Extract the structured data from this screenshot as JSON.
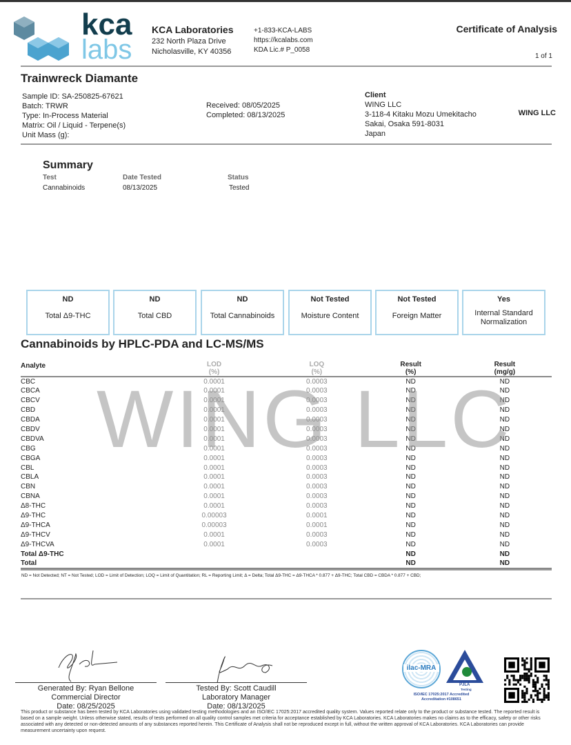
{
  "logo": {
    "top": "kca",
    "bottom": "labs"
  },
  "lab": {
    "name": "KCA Laboratories",
    "addr1": "232 North Plaza Drive",
    "addr2": "Nicholasville, KY 40356",
    "phone": "+1-833-KCA-LABS",
    "web": "https://kcalabs.com",
    "license": "KDA Lic.# P_0058"
  },
  "doc": {
    "title": "Certificate of Analysis",
    "page": "1 of 1"
  },
  "sample": {
    "name": "Trainwreck Diamante",
    "id": "Sample ID: SA-250825-67621",
    "batch": "Batch: TRWR",
    "type": "Type: In-Process Material",
    "matrix": "Matrix: Oil / Liquid - Terpene(s)",
    "unit_mass": "Unit Mass (g):",
    "received": "Received: 08/05/2025",
    "completed": "Completed: 08/13/2025"
  },
  "client": {
    "label": "Client",
    "name": "WING LLC",
    "addr1": "3-118-4 Kitaku Mozu Umekitacho",
    "addr2": "Sakai, Osaka 591-8031",
    "country": "Japan",
    "badge": "WING LLC"
  },
  "summary": {
    "title": "Summary",
    "headers": [
      "Test",
      "Date Tested",
      "Status"
    ],
    "row": [
      "Cannabinoids",
      "08/13/2025",
      "Tested"
    ]
  },
  "boxes": [
    {
      "value": "ND",
      "label": "Total Δ9-THC"
    },
    {
      "value": "ND",
      "label": "Total CBD"
    },
    {
      "value": "ND",
      "label": "Total Cannabinoids"
    },
    {
      "value": "Not Tested",
      "label": "Moisture Content"
    },
    {
      "value": "Not Tested",
      "label": "Foreign Matter"
    },
    {
      "value": "Yes",
      "label": "Internal Standard Normalization"
    }
  ],
  "cannabinoids": {
    "title": "Cannabinoids by HPLC-PDA and LC-MS/MS",
    "headers": {
      "analyte": "Analyte",
      "lod": "LOD",
      "lod_unit": "(%)",
      "loq": "LOQ",
      "loq_unit": "(%)",
      "result_pct": "Result",
      "result_pct_unit": "(%)",
      "result_mg": "Result",
      "result_mg_unit": "(mg/g)"
    },
    "rows": [
      [
        "CBC",
        "0.0001",
        "0.0003",
        "ND",
        "ND"
      ],
      [
        "CBCA",
        "0.0001",
        "0.0003",
        "ND",
        "ND"
      ],
      [
        "CBCV",
        "0.0001",
        "0.0003",
        "ND",
        "ND"
      ],
      [
        "CBD",
        "0.0001",
        "0.0003",
        "ND",
        "ND"
      ],
      [
        "CBDA",
        "0.0001",
        "0.0003",
        "ND",
        "ND"
      ],
      [
        "CBDV",
        "0.0001",
        "0.0003",
        "ND",
        "ND"
      ],
      [
        "CBDVA",
        "0.0001",
        "0.0003",
        "ND",
        "ND"
      ],
      [
        "CBG",
        "0.0001",
        "0.0003",
        "ND",
        "ND"
      ],
      [
        "CBGA",
        "0.0001",
        "0.0003",
        "ND",
        "ND"
      ],
      [
        "CBL",
        "0.0001",
        "0.0003",
        "ND",
        "ND"
      ],
      [
        "CBLA",
        "0.0001",
        "0.0003",
        "ND",
        "ND"
      ],
      [
        "CBN",
        "0.0001",
        "0.0003",
        "ND",
        "ND"
      ],
      [
        "CBNA",
        "0.0001",
        "0.0003",
        "ND",
        "ND"
      ],
      [
        "Δ8-THC",
        "0.0001",
        "0.0003",
        "ND",
        "ND"
      ],
      [
        "Δ9-THC",
        "0.00003",
        "0.0001",
        "ND",
        "ND"
      ],
      [
        "Δ9-THCA",
        "0.00003",
        "0.0001",
        "ND",
        "ND"
      ],
      [
        "Δ9-THCV",
        "0.0001",
        "0.0003",
        "ND",
        "ND"
      ],
      [
        "Δ9-THCVA",
        "0.0001",
        "0.0003",
        "ND",
        "ND"
      ]
    ],
    "totals": [
      [
        "Total Δ9-THC",
        "",
        "",
        "ND",
        "ND"
      ],
      [
        "Total",
        "",
        "",
        "ND",
        "ND"
      ]
    ]
  },
  "watermark": "WING LLC",
  "legend": "ND = Not Detected; NT = Not Tested; LOD = Limit of Detection; LOQ = Limit of Quantitation; RL = Reporting Limit; Δ = Delta; Total Δ9-THC = Δ9-THCA * 0.877 + Δ9-THC; Total CBD = CBDA * 0.877 + CBD;",
  "signatures": [
    {
      "line1": "Generated By: Ryan Bellone",
      "line2": "Commercial Director",
      "line3": "Date: 08/25/2025"
    },
    {
      "line1": "Tested By: Scott Caudill",
      "line2": "Laboratory Manager",
      "line3": "Date: 08/13/2025"
    }
  ],
  "accreditation": {
    "ilac": "ilac-MRA",
    "pjla": "PJLA",
    "pjla_sub": "Testing",
    "text1": "ISO/IEC 17025:2017 Accredited",
    "text2": "Accreditation #108651"
  },
  "disclaimer": "This product or substance has been tested by KCA Laboratories using validated testing methodologies and an ISO/IEC 17025:2017 accredited quality system. Values reported relate only to the product or substance tested. The reported result is based on a sample weight. Unless otherwise stated, results of tests performed on all quality control samples met criteria for acceptance established by KCA Laboratories. KCA Laboratories makes no claims as to the efficacy, safety or other risks associated with any detected or non-detected amounts of any substances reported herein. This Certificate of Analysis shall not be reproduced except in full, without the written approval of KCA Laboratories. KCA Laboratories can provide measurement uncertainty upon request."
}
